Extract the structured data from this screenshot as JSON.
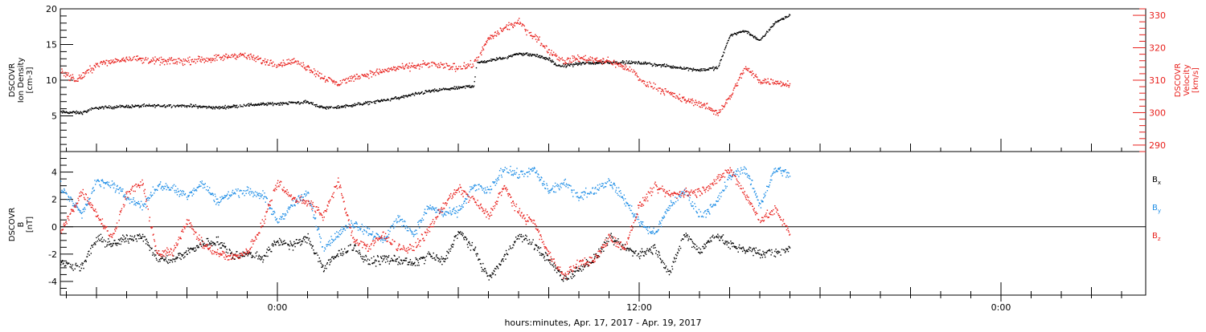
{
  "colors": {
    "black": "#000000",
    "red": "#e8201c",
    "blue": "#1f8ee6",
    "axis": "#000000"
  },
  "footer": {
    "xlabel": "hours:minutes, Apr. 17, 2017 - Apr. 19, 2017"
  },
  "chart_data": [
    {
      "type": "scatter",
      "title": "",
      "xlabel": "hours:minutes, Apr. 17, 2017 - Apr. 19, 2017",
      "ylabel": "DSCOVR Ion Density [cm-3]",
      "ylabel_lines": [
        "DSCOVR",
        "Ion Density",
        "[cm-3]"
      ],
      "y2label": "DSCOVR Velocity [km/s]",
      "y2label_lines": [
        "DSCOVR",
        "Velocity",
        "[km/s]"
      ],
      "x_unit": "hours since 2017-04-17 00:00",
      "xlim": [
        -7.2,
        28.8
      ],
      "ylim": [
        0,
        20
      ],
      "y2lim": [
        288,
        332
      ],
      "x_ticks": [
        {
          "x": 0,
          "label": "0:00"
        },
        {
          "x": 12,
          "label": "12:00"
        },
        {
          "x": 24,
          "label": "0:00"
        }
      ],
      "y_ticks": [
        5,
        10,
        15,
        20
      ],
      "y2_ticks": [
        290,
        300,
        310,
        320,
        330
      ],
      "grid": false,
      "series": [
        {
          "name": "Ion Density",
          "axis": "left",
          "color": "#000000",
          "x": [
            -7.2,
            -6.5,
            -6.0,
            -5.0,
            -4.0,
            -3.0,
            -2.0,
            -1.0,
            0.0,
            1.0,
            1.5,
            2.0,
            3.0,
            4.0,
            5.0,
            6.0,
            6.5,
            6.6,
            7.0,
            7.5,
            8.0,
            8.5,
            9.0,
            9.3,
            9.7,
            10.0,
            11.0,
            12.0,
            13.0,
            14.0,
            14.6,
            15.0,
            15.5,
            16.0,
            16.5,
            17.0
          ],
          "y": [
            5.6,
            5.5,
            6.2,
            6.4,
            6.5,
            6.5,
            6.2,
            6.6,
            6.8,
            7.0,
            6.2,
            6.3,
            6.9,
            7.6,
            8.5,
            9.0,
            9.3,
            12.5,
            12.8,
            13.2,
            13.8,
            13.6,
            13.0,
            12.0,
            12.2,
            12.4,
            12.6,
            12.5,
            12.0,
            11.5,
            11.8,
            16.4,
            17.0,
            15.6,
            18.2,
            19.2
          ]
        },
        {
          "name": "Velocity",
          "axis": "right",
          "color": "#e8201c",
          "x": [
            -7.2,
            -6.7,
            -6.0,
            -5.5,
            -5.0,
            -4.0,
            -3.0,
            -2.0,
            -1.2,
            -0.5,
            0.0,
            0.5,
            1.0,
            1.5,
            2.0,
            2.5,
            3.0,
            4.0,
            5.0,
            6.0,
            6.5,
            7.0,
            7.5,
            8.0,
            8.3,
            8.5,
            9.0,
            9.5,
            10.0,
            11.0,
            11.8,
            12.0,
            12.5,
            13.0,
            13.5,
            14.0,
            14.6,
            15.0,
            15.5,
            16.0,
            17.0
          ],
          "y": [
            313,
            310,
            315,
            316,
            317,
            316,
            316,
            317,
            318,
            316,
            315,
            316,
            314,
            311,
            309,
            311,
            312,
            314,
            315,
            314,
            315,
            323,
            326,
            328,
            325,
            324,
            319,
            316,
            317,
            316,
            313,
            310,
            308,
            306,
            304,
            303,
            300,
            305,
            314,
            310,
            309
          ]
        }
      ]
    },
    {
      "type": "scatter",
      "title": "",
      "xlabel": "hours:minutes, Apr. 17, 2017 - Apr. 19, 2017",
      "ylabel": "DSCOVR B [nT]",
      "ylabel_lines": [
        "DSCOVR",
        "B",
        "[nT]"
      ],
      "x_unit": "hours since 2017-04-17 00:00",
      "xlim": [
        -7.2,
        28.8
      ],
      "ylim": [
        -5,
        5.5
      ],
      "y_ticks": [
        -4,
        -2,
        0,
        2,
        4
      ],
      "zero_line": true,
      "grid": false,
      "legend": "right",
      "series": [
        {
          "name": "Bx",
          "color": "#000000",
          "x": [
            -7.2,
            -6.5,
            -6.0,
            -5.5,
            -5.0,
            -4.5,
            -4.0,
            -3.5,
            -3.0,
            -2.5,
            -2.0,
            -1.5,
            -1.0,
            -0.5,
            0.0,
            0.5,
            1.0,
            1.5,
            2.0,
            2.5,
            3.0,
            3.5,
            4.0,
            4.5,
            5.0,
            5.5,
            6.0,
            6.5,
            7.0,
            7.5,
            8.0,
            8.5,
            9.0,
            9.5,
            10.0,
            10.5,
            11.0,
            11.5,
            12.0,
            12.5,
            13.0,
            13.5,
            14.0,
            14.5,
            15.0,
            15.5,
            16.0,
            16.5,
            17.0
          ],
          "y": [
            -2.6,
            -3.0,
            -0.8,
            -1.3,
            -0.8,
            -0.6,
            -2.3,
            -2.4,
            -1.8,
            -1.2,
            -1.0,
            -2.0,
            -2.0,
            -2.2,
            -1.0,
            -1.3,
            -0.8,
            -3.0,
            -2.0,
            -1.4,
            -2.6,
            -2.3,
            -2.4,
            -2.7,
            -2.0,
            -2.5,
            -0.3,
            -1.6,
            -3.8,
            -2.2,
            -0.6,
            -1.3,
            -2.4,
            -3.8,
            -3.0,
            -2.3,
            -0.8,
            -1.5,
            -2.0,
            -1.5,
            -3.4,
            -0.5,
            -1.8,
            -0.5,
            -1.3,
            -1.6,
            -1.9,
            -1.9,
            -1.5
          ]
        },
        {
          "name": "By",
          "color": "#1f8ee6",
          "x": [
            -7.2,
            -6.5,
            -6.0,
            -5.5,
            -5.0,
            -4.5,
            -4.0,
            -3.5,
            -3.0,
            -2.5,
            -2.0,
            -1.5,
            -1.0,
            -0.5,
            0.0,
            0.5,
            1.0,
            1.5,
            2.0,
            2.5,
            3.0,
            3.5,
            4.0,
            4.5,
            5.0,
            5.5,
            6.0,
            6.5,
            7.0,
            7.5,
            8.0,
            8.5,
            9.0,
            9.5,
            10.0,
            10.5,
            11.0,
            11.5,
            12.0,
            12.5,
            13.0,
            13.5,
            14.0,
            14.5,
            15.0,
            15.5,
            16.0,
            16.5,
            17.0
          ],
          "y": [
            2.9,
            1.0,
            3.3,
            3.1,
            2.2,
            1.5,
            3.0,
            2.9,
            2.3,
            3.2,
            1.9,
            2.5,
            2.6,
            2.4,
            0.4,
            1.7,
            2.4,
            -1.5,
            -0.5,
            0.3,
            -0.3,
            -1.0,
            0.7,
            -0.5,
            1.5,
            1.0,
            1.2,
            3.0,
            2.6,
            4.3,
            3.8,
            4.2,
            2.6,
            3.2,
            2.3,
            2.7,
            3.4,
            2.0,
            0.4,
            -0.5,
            1.6,
            2.6,
            0.8,
            1.6,
            3.7,
            4.3,
            1.6,
            4.3,
            3.8
          ]
        },
        {
          "name": "Bz",
          "color": "#e8201c",
          "x": [
            -7.2,
            -6.5,
            -6.0,
            -5.5,
            -5.0,
            -4.5,
            -4.0,
            -3.5,
            -3.0,
            -2.5,
            -2.0,
            -1.5,
            -1.0,
            -0.5,
            0.0,
            0.5,
            1.0,
            1.5,
            2.0,
            2.5,
            3.0,
            3.5,
            4.0,
            4.5,
            5.0,
            5.5,
            6.0,
            6.5,
            7.0,
            7.5,
            8.0,
            8.5,
            9.0,
            9.5,
            10.0,
            10.5,
            11.0,
            11.5,
            12.0,
            12.5,
            13.0,
            13.5,
            14.0,
            14.5,
            15.0,
            15.5,
            16.0,
            16.5,
            17.0
          ],
          "y": [
            -0.4,
            2.6,
            1.0,
            -0.8,
            2.4,
            3.3,
            -2.0,
            -1.8,
            0.5,
            -1.3,
            -1.9,
            -2.2,
            -1.8,
            0.3,
            3.4,
            2.0,
            1.9,
            0.8,
            3.4,
            -0.9,
            -1.5,
            -0.6,
            -1.5,
            -1.6,
            -0.2,
            1.6,
            2.8,
            2.0,
            0.8,
            3.0,
            1.0,
            0.3,
            -2.0,
            -3.6,
            -2.6,
            -2.4,
            -0.7,
            -1.5,
            1.6,
            2.9,
            2.4,
            2.5,
            2.6,
            3.3,
            4.2,
            2.4,
            0.5,
            1.3,
            -0.4
          ]
        }
      ]
    }
  ]
}
